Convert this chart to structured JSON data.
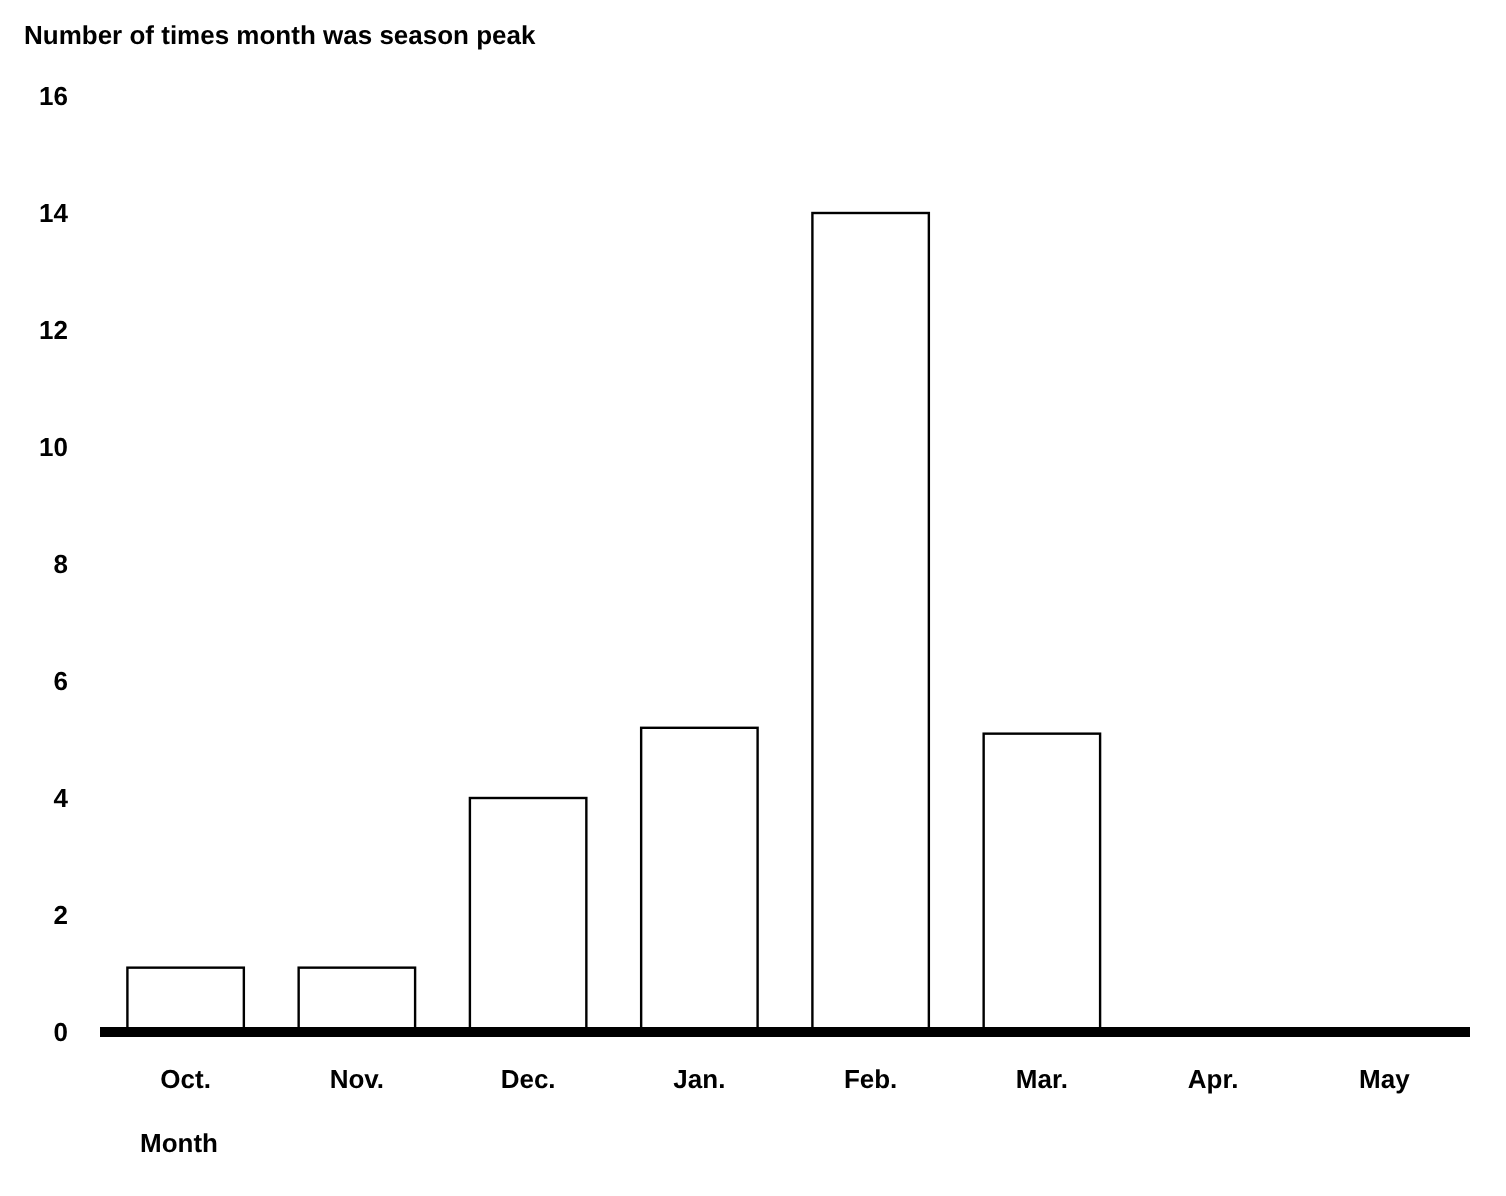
{
  "chart_data": {
    "type": "bar",
    "ylabel": "Number of times month was season peak",
    "xlabel": "Month",
    "categories": [
      "Oct.",
      "Nov.",
      "Dec.",
      "Jan.",
      "Feb.",
      "Mar.",
      "Apr.",
      "May"
    ],
    "values": [
      1.1,
      1.1,
      4,
      5.2,
      14,
      5.1,
      0,
      0
    ],
    "color": "#ffffff",
    "ylim": [
      0,
      16
    ],
    "yticks": [
      0,
      2,
      4,
      6,
      8,
      10,
      12,
      14,
      16
    ],
    "grid": false
  }
}
